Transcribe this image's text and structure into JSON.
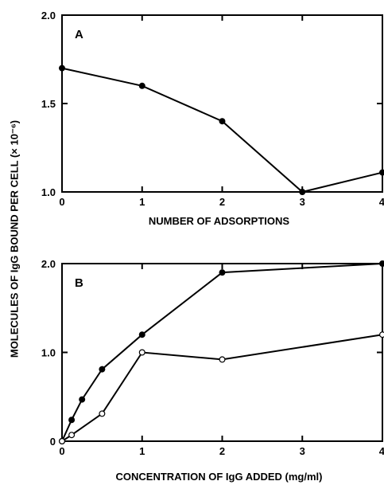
{
  "ylabel": "MOLECULES OF IgG BOUND PER CELL (× 10⁻⁶)",
  "chart_data": [
    {
      "type": "line",
      "panel_label": "A",
      "xlabel": "NUMBER OF ADSORPTIONS",
      "xlim": [
        0,
        4
      ],
      "ylim": [
        1.0,
        2.0
      ],
      "x_ticks": [
        0,
        1,
        2,
        3,
        4
      ],
      "y_ticks": [
        1.0,
        1.5,
        2.0
      ],
      "x_tick_labels": [
        "0",
        "1",
        "2",
        "3",
        "4"
      ],
      "y_tick_labels": [
        "1.0",
        "1.5",
        "2.0"
      ],
      "series": [
        {
          "marker": "filled",
          "x": [
            0,
            1,
            2,
            3,
            4
          ],
          "y": [
            1.7,
            1.6,
            1.4,
            1.0,
            1.11
          ]
        }
      ]
    },
    {
      "type": "line",
      "panel_label": "B",
      "xlabel": "CONCENTRATION OF IgG ADDED (mg/ml)",
      "xlim": [
        0,
        4
      ],
      "ylim": [
        0,
        2.0
      ],
      "x_ticks": [
        0,
        1,
        2,
        3,
        4
      ],
      "y_ticks": [
        0,
        1.0,
        2.0
      ],
      "x_tick_labels": [
        "0",
        "1",
        "2",
        "3",
        "4"
      ],
      "y_tick_labels": [
        "0",
        "1.0",
        "2.0"
      ],
      "series": [
        {
          "marker": "filled",
          "x": [
            0,
            0.12,
            0.25,
            0.5,
            1,
            2,
            4
          ],
          "y": [
            0,
            0.24,
            0.47,
            0.81,
            1.2,
            1.9,
            2.0
          ]
        },
        {
          "marker": "open",
          "x": [
            0,
            0.12,
            0.5,
            1,
            2,
            4
          ],
          "y": [
            0,
            0.07,
            0.31,
            1.0,
            0.92,
            1.2
          ]
        }
      ]
    }
  ]
}
